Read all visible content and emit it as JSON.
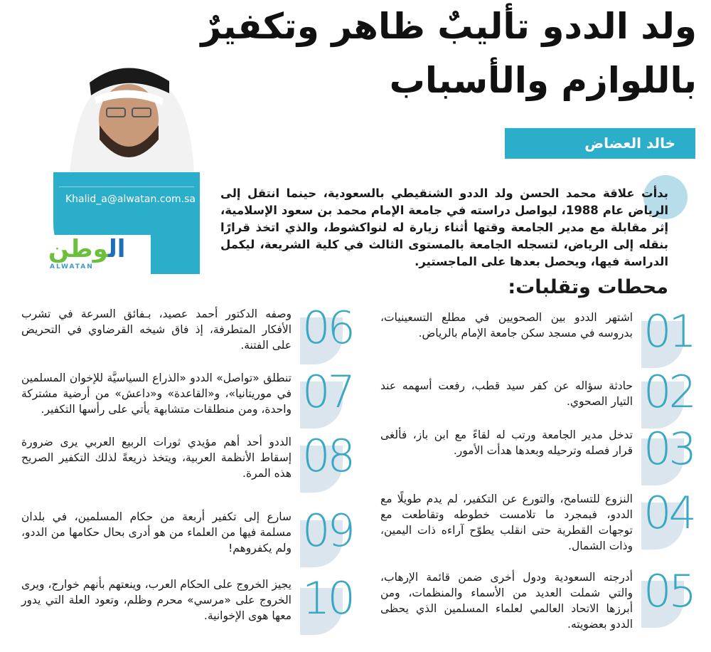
{
  "article": {
    "title_line1": "ولد الددو تأليبٌ ظاهر وتكفيرٌ",
    "title_line2": "باللوازم والأسباب",
    "author": "خالد العضاض",
    "author_email": "Khalid_a@alwatan.com.sa",
    "logo_ar_part1": "ال",
    "logo_ar_part2": "وطن",
    "logo_en": "ALWATAN",
    "intro": "بدأت علاقة محمد الحسن ولد الددو الشنقيطي بالسعودية، حينما انتقل إلى الرياض عام 1988، ليواصل دراسته في جامعة الإمام محمد بن سعود الإسلامية، إثر مقابلة مع مدير الجامعة وقتها أثناء زيارة له لنواكشوط، والذي اتخذ قرارًا بنقله إلى الرياض، لتسجله الجامعة بالمستوى الثالث في كلية الشريعة، ليكمل الدراسة فيها، ويحصل بعدها على الماجستير.",
    "section_title": "محطات وتقلبات:",
    "accent_color": "#2baec9",
    "items": [
      {
        "num": "01",
        "text": "اشتهر الددو بين الصحويين في مطلع التسعينيات، بدروسه في مسجد سكن جامعة الإمام بالرياض."
      },
      {
        "num": "02",
        "text": "حادثة سؤاله  عن كفر سيد قطب، رفعت أسهمه عند التيار الصحوي."
      },
      {
        "num": "03",
        "text": "تدخل مدير الجامعة ورتب له لقاءً مع ابن باز، فألغى قرار  فصله وترحيله وبعدها هدأت الأمور."
      },
      {
        "num": "04",
        "text": "النزوع للتسامح، والتورع عن التكفير، لم يدم طويلًا مع الددو، فبمجرد ما تلامست خطوطه وتقاطعت مع توجهات القطرية حتى انقلب يطوّح آراءه ذات اليمين، وذات الشمال."
      },
      {
        "num": "05",
        "text": "أدرجته السعودية ودول أخرى ضمن قائمة الإرهاب، والتي شملت العديد من الأسماء والمنظمات، ومن أبرزها الاتحاد العالمي لعلماء المسلمين الذي يحظى الددو بعضويته."
      },
      {
        "num": "06",
        "text": "وصفه الدكتور أحمد عصيد، بـفائق السرعة في تشرب الأفكار المتطرفة، إذ فاق شيخه القرضاوي في التحريض على الفتنة."
      },
      {
        "num": "07",
        "text": "تنطلق «تواصل» الددو «الذراع السياسيَّة للإخوان المسلمين في موريتانيا»، و«القاعدة» و«داعش» من أرضية مشتركة واحدة، ومن منطلقات متشابهة يأتي على رأسها التكفير."
      },
      {
        "num": "08",
        "text": "الددو أحد أهم مؤيدي ثورات الربيع العربي يرى ضرورة إسقاط الأنظمة العربية، ويتخذ ذريعةً لذلك التكفير الصريح هذه المرة."
      },
      {
        "num": "09",
        "text": "سارع إلى تكفير أربعة من حكام المسلمين، في بلدان مسلمة فيها من العلماء من هو أدرى بحال حكامها من الددو، ولم يكفروهم!"
      },
      {
        "num": "10",
        "text": "يجيز الخروج على الحكام العرب، وينعتهم بأنهم خوارج، ويرى الخروج على «مرسي» محرم وظلم، وتعود العلة التي يدور معها هوى الإخوانية."
      }
    ]
  }
}
